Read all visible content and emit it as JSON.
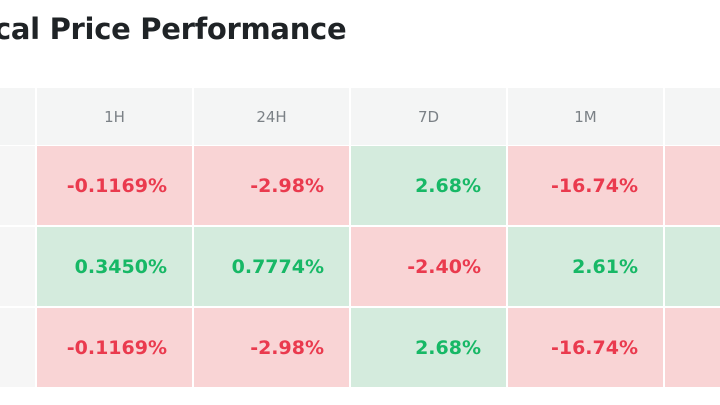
{
  "header": {
    "title": "cal Price Performance"
  },
  "table": {
    "columns": [
      "1H",
      "24H",
      "7D",
      "1M"
    ],
    "rows": [
      [
        "-0.1169%",
        "-2.98%",
        "2.68%",
        "-16.74%"
      ],
      [
        "0.3450%",
        "0.7774%",
        "-2.40%",
        "2.61%"
      ],
      [
        "-0.1169%",
        "-2.98%",
        "2.68%",
        "-16.74%"
      ]
    ]
  }
}
